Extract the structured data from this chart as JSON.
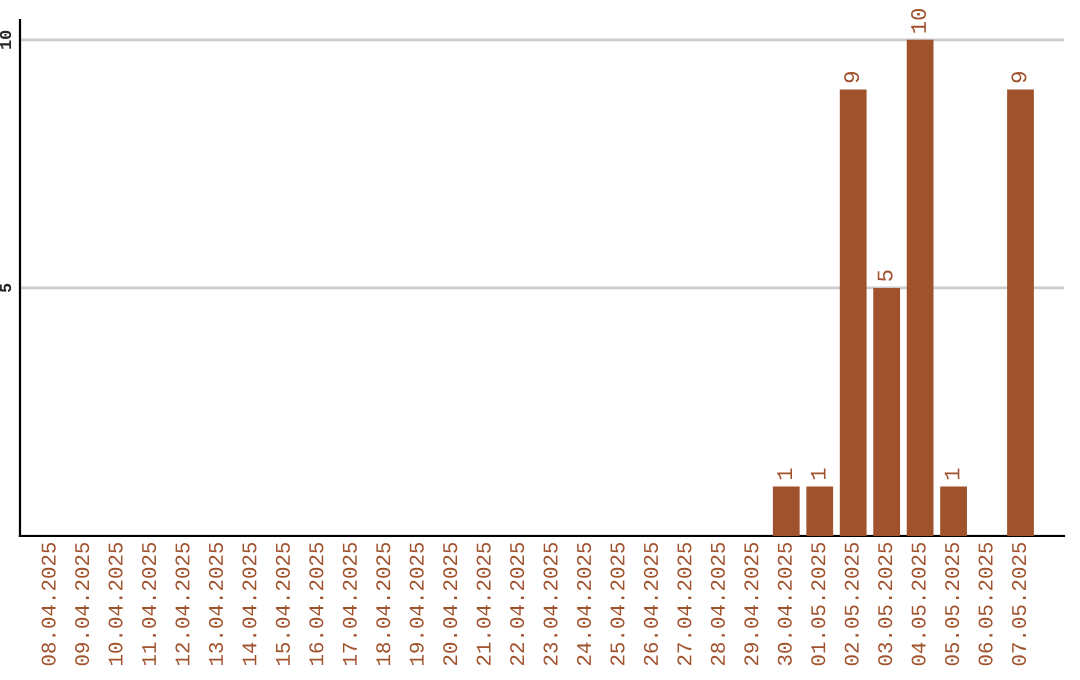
{
  "chart_data": {
    "type": "bar",
    "categories": [
      "08.04.2025",
      "09.04.2025",
      "10.04.2025",
      "11.04.2025",
      "12.04.2025",
      "13.04.2025",
      "14.04.2025",
      "15.04.2025",
      "16.04.2025",
      "17.04.2025",
      "18.04.2025",
      "19.04.2025",
      "20.04.2025",
      "21.04.2025",
      "22.04.2025",
      "23.04.2025",
      "24.04.2025",
      "25.04.2025",
      "26.04.2025",
      "27.04.2025",
      "28.04.2025",
      "29.04.2025",
      "30.04.2025",
      "01.05.2025",
      "02.05.2025",
      "03.05.2025",
      "04.05.2025",
      "05.05.2025",
      "06.05.2025",
      "07.05.2025"
    ],
    "values": [
      0,
      0,
      0,
      0,
      0,
      0,
      0,
      0,
      0,
      0,
      0,
      0,
      0,
      0,
      0,
      0,
      0,
      0,
      0,
      0,
      0,
      0,
      1,
      1,
      9,
      5,
      10,
      1,
      0,
      9
    ],
    "value_labels": [
      null,
      null,
      null,
      null,
      null,
      null,
      null,
      null,
      null,
      null,
      null,
      null,
      null,
      null,
      null,
      null,
      null,
      null,
      null,
      null,
      null,
      null,
      "1",
      "1",
      "9",
      "5",
      "10",
      "1",
      null,
      "9"
    ],
    "color": "#a0522d",
    "ylim": [
      0,
      10.4
    ],
    "yticks": [
      {
        "value": 0,
        "label": null
      },
      5,
      10
    ],
    "grid": "y",
    "legend": false
  }
}
